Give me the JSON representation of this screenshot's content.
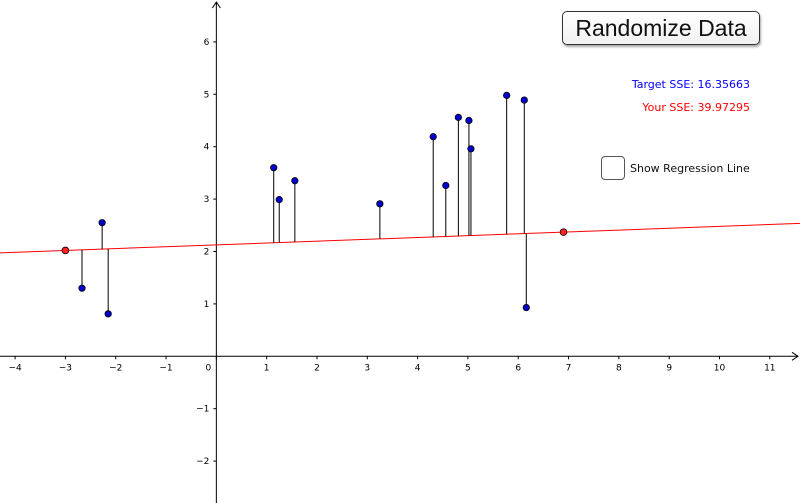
{
  "buttons": {
    "randomize_label": "Randomize Data"
  },
  "stats": {
    "target_label": "Target SSE:",
    "target_value": "16.35663",
    "your_label": "Your SSE:",
    "your_value": "39.97295"
  },
  "controls": {
    "show_regression_label": "Show Regression Line",
    "show_regression_checked": false
  },
  "colors": {
    "target": "#0000ff",
    "your": "#ff0000",
    "point_fill": "#0000cc",
    "handle_fill": "#ff2020",
    "line": "#ff0000",
    "residual": "#000000",
    "axis": "#000000"
  },
  "chart_data": {
    "type": "scatter",
    "xlim": [
      -4.3,
      11.6
    ],
    "ylim": [
      -2.8,
      6.8
    ],
    "grid": false,
    "x_ticks": [
      "−4",
      "−3",
      "−2",
      "−1",
      "0",
      "1",
      "2",
      "3",
      "4",
      "5",
      "6",
      "7",
      "8",
      "9",
      "10",
      "11"
    ],
    "y_ticks": [
      "−2",
      "−1",
      "1",
      "2",
      "3",
      "4",
      "5",
      "6"
    ],
    "points": [
      {
        "x": -2.67,
        "y": 1.3
      },
      {
        "x": -2.27,
        "y": 2.55
      },
      {
        "x": -2.15,
        "y": 0.81
      },
      {
        "x": 1.14,
        "y": 3.6
      },
      {
        "x": 1.25,
        "y": 2.99
      },
      {
        "x": 1.56,
        "y": 3.35
      },
      {
        "x": 3.25,
        "y": 2.91
      },
      {
        "x": 4.31,
        "y": 4.19
      },
      {
        "x": 4.56,
        "y": 3.26
      },
      {
        "x": 4.81,
        "y": 4.56
      },
      {
        "x": 5.02,
        "y": 4.5
      },
      {
        "x": 5.06,
        "y": 3.96
      },
      {
        "x": 5.77,
        "y": 4.98
      },
      {
        "x": 6.12,
        "y": 4.89
      },
      {
        "x": 6.16,
        "y": 0.93
      }
    ],
    "line_handles": [
      {
        "x": -3.0,
        "y": 2.02
      },
      {
        "x": 6.9,
        "y": 2.37
      }
    ]
  }
}
